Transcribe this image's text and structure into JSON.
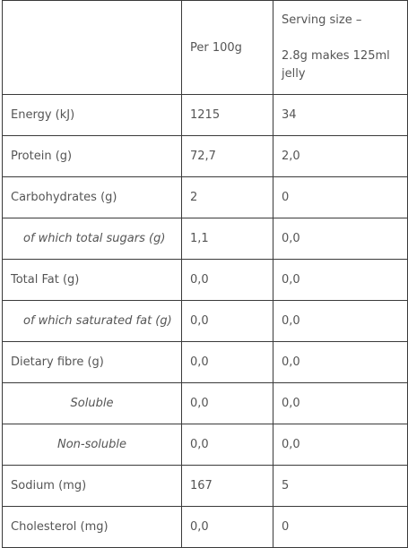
{
  "table": {
    "header": {
      "per_100g": "Per 100g",
      "serving": [
        "Serving size –",
        "2.8g makes 125ml jelly"
      ]
    },
    "rows": [
      [
        "Energy (kJ)",
        "1215",
        "34"
      ],
      [
        "Protein (g)",
        "72,7",
        "2,0"
      ],
      [
        "Carbohydrates (g)",
        "2",
        "0"
      ],
      [
        "of which total sugars (g)",
        "1,1",
        "0,0"
      ],
      [
        "Total Fat (g)",
        "0,0",
        "0,0"
      ],
      [
        "of which saturated fat (g)",
        "0,0",
        "0,0"
      ],
      [
        "Dietary fibre (g)",
        "0,0",
        "0,0"
      ],
      [
        "Soluble",
        "0,0",
        "0,0"
      ],
      [
        "Non-soluble",
        "0,0",
        "0,0"
      ],
      [
        "Sodium (mg)",
        "167",
        "5"
      ],
      [
        "Cholesterol (mg)",
        "0,0",
        "0"
      ]
    ]
  }
}
